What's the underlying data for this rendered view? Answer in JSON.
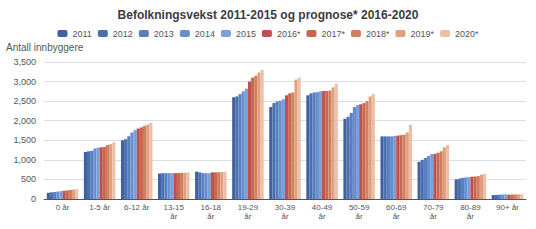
{
  "chart_data": {
    "type": "bar",
    "title": "Befolkningsvekst 2011-2015 og prognose* 2016-2020",
    "ylabel": "Antall innbyggere",
    "categories": [
      "0 år",
      "1-5 år",
      "6-12 år",
      "13-15\når",
      "16-18\når",
      "19-29\når",
      "30-39\når",
      "40-49\når",
      "50-59\når",
      "60-69\når",
      "70-79\når",
      "80-89\når",
      "90+ år"
    ],
    "series": [
      {
        "name": "2011",
        "color": "#4060a0",
        "values": [
          160,
          1200,
          1500,
          650,
          700,
          2600,
          2350,
          2650,
          2050,
          1600,
          950,
          500,
          100
        ]
      },
      {
        "name": "2012",
        "color": "#4a70b0",
        "values": [
          170,
          1220,
          1530,
          660,
          680,
          2620,
          2450,
          2700,
          2100,
          1600,
          1000,
          520,
          105
        ]
      },
      {
        "name": "2013",
        "color": "#5880c0",
        "values": [
          180,
          1230,
          1600,
          660,
          660,
          2680,
          2490,
          2720,
          2200,
          1600,
          1050,
          540,
          110
        ]
      },
      {
        "name": "2014",
        "color": "#6890ce",
        "values": [
          190,
          1290,
          1700,
          660,
          660,
          2750,
          2510,
          2730,
          2350,
          1600,
          1100,
          550,
          115
        ]
      },
      {
        "name": "2015",
        "color": "#78a0dc",
        "values": [
          200,
          1310,
          1760,
          660,
          660,
          2820,
          2550,
          2750,
          2400,
          1610,
          1150,
          560,
          120
        ]
      },
      {
        "name": "2016*",
        "color": "#c0504d",
        "values": [
          210,
          1320,
          1800,
          660,
          680,
          3000,
          2650,
          2760,
          2420,
          1620,
          1150,
          570,
          110
        ]
      },
      {
        "name": "2017*",
        "color": "#c86850",
        "values": [
          220,
          1330,
          1830,
          665,
          680,
          3100,
          2700,
          2760,
          2450,
          1630,
          1180,
          575,
          115
        ]
      },
      {
        "name": "2018*",
        "color": "#d08060",
        "values": [
          230,
          1380,
          1870,
          670,
          685,
          3150,
          2720,
          2770,
          2500,
          1640,
          1220,
          585,
          115
        ]
      },
      {
        "name": "2019*",
        "color": "#e0a080",
        "values": [
          240,
          1400,
          1900,
          670,
          690,
          3230,
          3050,
          2850,
          2620,
          1700,
          1320,
          620,
          120
        ]
      },
      {
        "name": "2020*",
        "color": "#ecc0a8",
        "values": [
          250,
          1450,
          1950,
          680,
          695,
          3300,
          3100,
          2950,
          2680,
          1900,
          1380,
          640,
          125
        ]
      }
    ],
    "ylim": [
      0,
      3500
    ],
    "yticks": [
      0,
      500,
      1000,
      1500,
      2000,
      2500,
      3000,
      3500
    ],
    "grid": true,
    "legend": "upper center"
  }
}
